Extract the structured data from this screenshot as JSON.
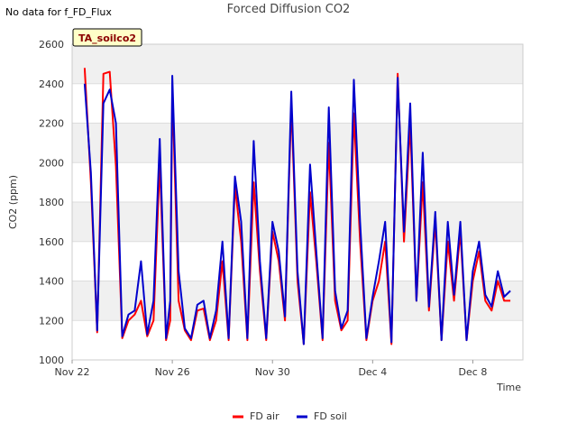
{
  "header": {
    "no_data_note": "No data for f_FD_Flux",
    "title": "Forced Diffusion CO2"
  },
  "badge": {
    "label": "TA_soilco2"
  },
  "colors": {
    "fd_air": "#ff0000",
    "fd_soil": "#0000cc",
    "band": "#f0f0f0",
    "grid": "#dddddd"
  },
  "chart_data": {
    "type": "line",
    "title": "Forced Diffusion CO2",
    "xlabel": "Time",
    "ylabel": "CO2 (ppm)",
    "ylim": [
      1000,
      2600
    ],
    "yticks": [
      1000,
      1200,
      1400,
      1600,
      1800,
      2000,
      2200,
      2400,
      2600
    ],
    "xlim": [
      "Nov 22",
      "Dec 10"
    ],
    "xticks": [
      "Nov 22",
      "Nov 26",
      "Nov 30",
      "Dec 4",
      "Dec 8"
    ],
    "grid": true,
    "legend": "bottom-center",
    "series": [
      {
        "name": "FD air",
        "color": "#ff0000",
        "x": [
          "Nov 22 12:00",
          "Nov 22 18:00",
          "Nov 23 00:00",
          "Nov 23 06:00",
          "Nov 23 12:00",
          "Nov 23 18:00",
          "Nov 24 00:00",
          "Nov 24 06:00",
          "Nov 24 12:00",
          "Nov 24 18:00",
          "Nov 25 00:00",
          "Nov 25 06:00",
          "Nov 25 12:00",
          "Nov 25 18:00",
          "Nov 25 22:00",
          "Nov 26 00:00",
          "Nov 26 06:00",
          "Nov 26 12:00",
          "Nov 26 18:00",
          "Nov 27 00:00",
          "Nov 27 06:00",
          "Nov 27 12:00",
          "Nov 27 18:00",
          "Nov 28 00:00",
          "Nov 28 06:00",
          "Nov 28 12:00",
          "Nov 28 18:00",
          "Nov 29 00:00",
          "Nov 29 06:00",
          "Nov 29 12:00",
          "Nov 29 18:00",
          "Nov 30 00:00",
          "Nov 30 06:00",
          "Nov 30 12:00",
          "Nov 30 18:00",
          "Dec 1 00:00",
          "Dec 1 06:00",
          "Dec 1 12:00",
          "Dec 1 18:00",
          "Dec 2 00:00",
          "Dec 2 06:00",
          "Dec 2 12:00",
          "Dec 2 18:00",
          "Dec 3 00:00",
          "Dec 3 06:00",
          "Dec 3 12:00",
          "Dec 3 18:00",
          "Dec 4 00:00",
          "Dec 4 06:00",
          "Dec 4 12:00",
          "Dec 4 18:00",
          "Dec 5 00:00",
          "Dec 5 06:00",
          "Dec 5 12:00",
          "Dec 5 18:00",
          "Dec 6 00:00",
          "Dec 6 06:00",
          "Dec 6 12:00",
          "Dec 6 18:00",
          "Dec 7 00:00",
          "Dec 7 06:00",
          "Dec 7 12:00",
          "Dec 7 18:00",
          "Dec 8 00:00",
          "Dec 8 06:00",
          "Dec 8 12:00",
          "Dec 8 18:00",
          "Dec 9 00:00",
          "Dec 9 06:00",
          "Dec 9 12:00"
        ],
        "y": [
          2480,
          1900,
          1140,
          2450,
          2460,
          1980,
          1110,
          1200,
          1230,
          1300,
          1120,
          1200,
          2000,
          1100,
          1200,
          2380,
          1300,
          1150,
          1100,
          1250,
          1260,
          1100,
          1200,
          1500,
          1100,
          1880,
          1600,
          1100,
          1900,
          1450,
          1100,
          1650,
          1500,
          1200,
          2300,
          1400,
          1080,
          1850,
          1500,
          1100,
          2100,
          1300,
          1150,
          1200,
          2250,
          1600,
          1100,
          1300,
          1400,
          1600,
          1080,
          2450,
          1600,
          2200,
          1300,
          1900,
          1250,
          1700,
          1100,
          1600,
          1300,
          1650,
          1100,
          1400,
          1550,
          1300,
          1250,
          1400,
          1300,
          1300
        ]
      },
      {
        "name": "FD soil",
        "color": "#0000cc",
        "x": [
          "Nov 22 12:00",
          "Nov 22 18:00",
          "Nov 23 00:00",
          "Nov 23 06:00",
          "Nov 23 12:00",
          "Nov 23 18:00",
          "Nov 24 00:00",
          "Nov 24 06:00",
          "Nov 24 12:00",
          "Nov 24 18:00",
          "Nov 25 00:00",
          "Nov 25 06:00",
          "Nov 25 12:00",
          "Nov 25 18:00",
          "Nov 25 22:00",
          "Nov 26 00:00",
          "Nov 26 06:00",
          "Nov 26 12:00",
          "Nov 26 18:00",
          "Nov 27 00:00",
          "Nov 27 06:00",
          "Nov 27 12:00",
          "Nov 27 18:00",
          "Nov 28 00:00",
          "Nov 28 06:00",
          "Nov 28 12:00",
          "Nov 28 18:00",
          "Nov 29 00:00",
          "Nov 29 06:00",
          "Nov 29 12:00",
          "Nov 29 18:00",
          "Nov 30 00:00",
          "Nov 30 06:00",
          "Nov 30 12:00",
          "Nov 30 18:00",
          "Dec 1 00:00",
          "Dec 1 06:00",
          "Dec 1 12:00",
          "Dec 1 18:00",
          "Dec 2 00:00",
          "Dec 2 06:00",
          "Dec 2 12:00",
          "Dec 2 18:00",
          "Dec 3 00:00",
          "Dec 3 06:00",
          "Dec 3 12:00",
          "Dec 3 18:00",
          "Dec 4 00:00",
          "Dec 4 06:00",
          "Dec 4 12:00",
          "Dec 4 18:00",
          "Dec 5 00:00",
          "Dec 5 06:00",
          "Dec 5 12:00",
          "Dec 5 18:00",
          "Dec 6 00:00",
          "Dec 6 06:00",
          "Dec 6 12:00",
          "Dec 6 18:00",
          "Dec 7 00:00",
          "Dec 7 06:00",
          "Dec 7 12:00",
          "Dec 7 18:00",
          "Dec 8 00:00",
          "Dec 8 06:00",
          "Dec 8 12:00",
          "Dec 8 18:00",
          "Dec 9 00:00",
          "Dec 9 06:00",
          "Dec 9 12:00"
        ],
        "y": [
          2400,
          1950,
          1150,
          2300,
          2370,
          2200,
          1120,
          1230,
          1250,
          1500,
          1130,
          1300,
          2120,
          1110,
          1300,
          2440,
          1450,
          1160,
          1110,
          1280,
          1300,
          1110,
          1250,
          1600,
          1110,
          1930,
          1700,
          1110,
          2110,
          1500,
          1110,
          1700,
          1550,
          1220,
          2360,
          1450,
          1080,
          1990,
          1550,
          1110,
          2280,
          1350,
          1160,
          1250,
          2420,
          1700,
          1110,
          1320,
          1500,
          1700,
          1090,
          2430,
          1650,
          2300,
          1300,
          2050,
          1270,
          1750,
          1100,
          1700,
          1330,
          1700,
          1100,
          1450,
          1600,
          1330,
          1270,
          1450,
          1320,
          1350
        ]
      }
    ]
  },
  "legend": {
    "items": [
      {
        "label": "FD air",
        "color": "#ff0000"
      },
      {
        "label": "FD soil",
        "color": "#0000cc"
      }
    ]
  }
}
